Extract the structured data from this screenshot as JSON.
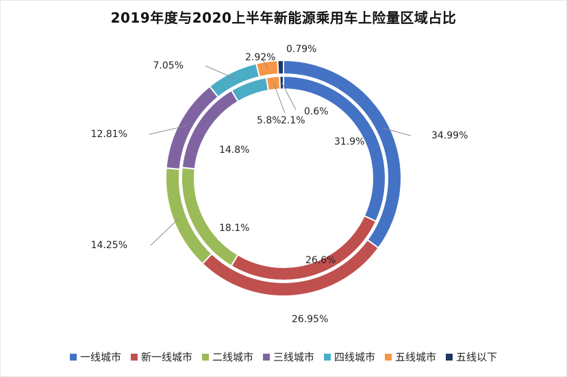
{
  "chart_data": {
    "type": "donut",
    "title": "2019年度与2020上半年新能源乘用车上险量区域占比",
    "categories": [
      "一线城市",
      "新一线城市",
      "二线城市",
      "三线城市",
      "四线城市",
      "五线城市",
      "五线以下"
    ],
    "colors": [
      "#4472c4",
      "#c0504d",
      "#9bbb59",
      "#8064a2",
      "#4bacc6",
      "#f79646",
      "#1f3864"
    ],
    "series": [
      {
        "ring": "outer",
        "values": [
          34.99,
          26.95,
          14.25,
          12.81,
          7.05,
          2.92,
          0.79
        ],
        "labels": [
          "34.99%",
          "26.95%",
          "14.25%",
          "12.81%",
          "7.05%",
          "2.92%",
          "0.79%"
        ]
      },
      {
        "ring": "inner",
        "values": [
          31.9,
          26.6,
          18.1,
          14.8,
          5.8,
          2.1,
          0.6
        ],
        "labels": [
          "31.9%",
          "26.6%",
          "18.1%",
          "14.8%",
          "5.8%",
          "2.1%",
          "0.6%"
        ]
      }
    ],
    "legend": "bottom"
  }
}
